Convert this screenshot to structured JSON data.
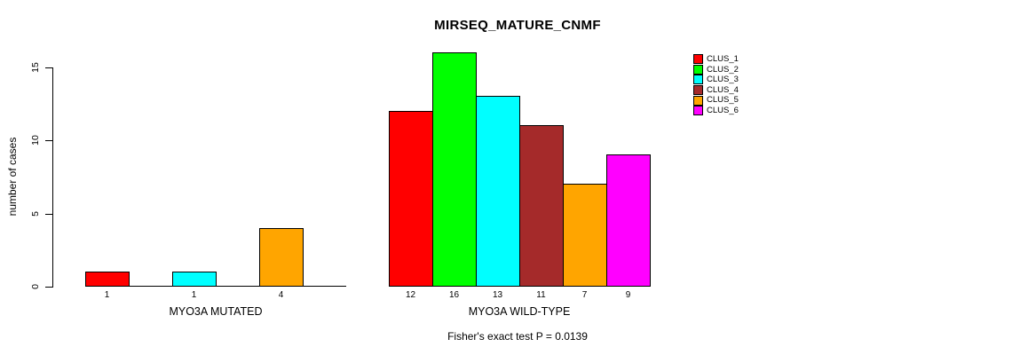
{
  "figure": {
    "title": "MIRSEQ_MATURE_CNMF",
    "y_axis_label": "number of cases",
    "footnote": "Fisher's exact test P = 0.0139"
  },
  "legend": {
    "items": [
      {
        "label": "CLUS_1",
        "color": "#FF0000"
      },
      {
        "label": "CLUS_2",
        "color": "#00FF00"
      },
      {
        "label": "CLUS_3",
        "color": "#00FFFF"
      },
      {
        "label": "CLUS_4",
        "color": "#A52A2A"
      },
      {
        "label": "CLUS_5",
        "color": "#FFA500"
      },
      {
        "label": "CLUS_6",
        "color": "#FF00FF"
      }
    ]
  },
  "chart_data": {
    "type": "bar",
    "title": "MIRSEQ_MATURE_CNMF",
    "xlabel": "",
    "ylabel": "number of cases",
    "ylim": [
      0,
      15
    ],
    "yticks": [
      0,
      5,
      10,
      15
    ],
    "grid": false,
    "legend_position": "right-outside",
    "series_names": [
      "CLUS_1",
      "CLUS_2",
      "CLUS_3",
      "CLUS_4",
      "CLUS_5",
      "CLUS_6"
    ],
    "colors": [
      "#FF0000",
      "#00FF00",
      "#00FFFF",
      "#A52A2A",
      "#FFA500",
      "#FF00FF"
    ],
    "groups": [
      {
        "label": "MYO3A MUTATED",
        "values": [
          1,
          0,
          1,
          0,
          4,
          0
        ]
      },
      {
        "label": "MYO3A WILD-TYPE",
        "values": [
          12,
          16,
          13,
          11,
          7,
          9
        ]
      }
    ],
    "annotation": "Fisher's exact test P = 0.0139"
  }
}
